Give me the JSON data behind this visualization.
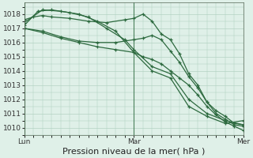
{
  "bg_color": "#dff0e8",
  "plot_bg_color": "#dff0e8",
  "grid_color": "#aaccbb",
  "line_color": "#2d6a3f",
  "xlabel": "Pression niveau de la mer( hPa )",
  "xlabel_fontsize": 8,
  "tick_fontsize": 6.5,
  "ylim": [
    1009.5,
    1018.8
  ],
  "yticks": [
    1010,
    1011,
    1012,
    1013,
    1014,
    1015,
    1016,
    1017,
    1018
  ],
  "xtick_labels": [
    "Lun",
    "Mar",
    "Mer"
  ],
  "xtick_positions": [
    0,
    48,
    96
  ],
  "x_total": 96,
  "series": [
    [
      0,
      1017.4,
      8,
      1018.3,
      16,
      1018.2,
      24,
      1018.0,
      32,
      1017.5,
      40,
      1016.8,
      48,
      1015.3,
      56,
      1014.0,
      64,
      1013.5,
      72,
      1011.5,
      80,
      1010.8,
      88,
      1010.3,
      96,
      1010.5
    ],
    [
      0,
      1017.2,
      6,
      1018.2,
      12,
      1018.3,
      20,
      1018.1,
      28,
      1017.8,
      36,
      1017.0,
      44,
      1016.2,
      48,
      1015.5,
      56,
      1014.3,
      64,
      1013.8,
      72,
      1012.0,
      80,
      1011.0,
      88,
      1010.5,
      96,
      1010.2
    ],
    [
      0,
      1017.6,
      4,
      1017.8,
      8,
      1017.9,
      12,
      1017.8,
      20,
      1017.7,
      28,
      1017.5,
      36,
      1017.4,
      44,
      1017.6,
      48,
      1017.7,
      52,
      1018.0,
      56,
      1017.5,
      60,
      1016.6,
      64,
      1016.2,
      68,
      1015.2,
      72,
      1013.8,
      76,
      1013.0,
      80,
      1011.8,
      84,
      1011.0,
      88,
      1010.6,
      92,
      1010.2,
      96,
      1010.1
    ],
    [
      0,
      1017.0,
      8,
      1016.8,
      16,
      1016.4,
      24,
      1016.1,
      32,
      1016.0,
      40,
      1016.0,
      48,
      1016.2,
      52,
      1016.3,
      56,
      1016.5,
      60,
      1016.2,
      64,
      1015.4,
      68,
      1014.6,
      72,
      1013.6,
      76,
      1012.8,
      80,
      1011.8,
      84,
      1011.2,
      88,
      1010.8,
      92,
      1010.3,
      96,
      1010.2
    ],
    [
      0,
      1017.0,
      8,
      1016.7,
      16,
      1016.3,
      24,
      1016.0,
      32,
      1015.7,
      40,
      1015.5,
      48,
      1015.3,
      52,
      1015.0,
      56,
      1014.8,
      60,
      1014.5,
      64,
      1014.0,
      68,
      1013.5,
      72,
      1013.0,
      76,
      1012.3,
      80,
      1011.5,
      84,
      1010.9,
      88,
      1010.4,
      92,
      1010.1,
      96,
      1009.8
    ]
  ]
}
